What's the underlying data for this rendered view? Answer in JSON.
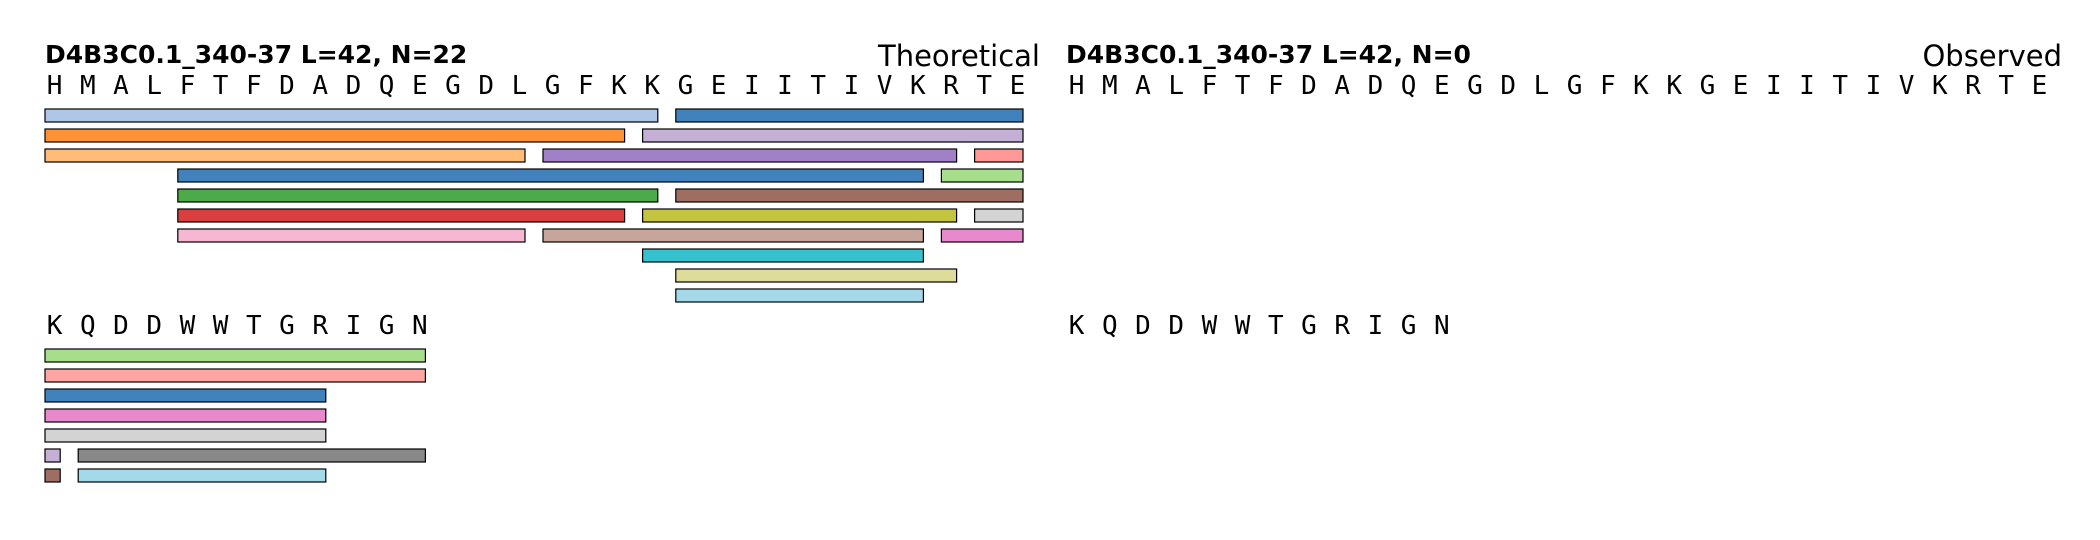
{
  "panels": [
    {
      "title": "D4B3C0.1_340-37  L=42, N=22",
      "label": "Theoretical",
      "rows": [
        {
          "residues": [
            "H",
            "M",
            "A",
            "L",
            "F",
            "T",
            "F",
            "D",
            "A",
            "D",
            "Q",
            "E",
            "G",
            "D",
            "L",
            "G",
            "F",
            "K",
            "K",
            "G",
            "E",
            "I",
            "I",
            "T",
            "I",
            "V",
            "K",
            "R",
            "T",
            "E"
          ],
          "peptides": [
            {
              "start": 1,
              "end": 19,
              "lane": 1,
              "color": "#aec7e8"
            },
            {
              "start": 20,
              "end": 30,
              "lane": 1,
              "color": "#4182bd"
            },
            {
              "start": 1,
              "end": 18,
              "lane": 2,
              "color": "#ff9234"
            },
            {
              "start": 19,
              "end": 30,
              "lane": 2,
              "color": "#c5b0d5"
            },
            {
              "start": 1,
              "end": 15,
              "lane": 3,
              "color": "#ffbb78"
            },
            {
              "start": 16,
              "end": 28,
              "lane": 3,
              "color": "#a081c7"
            },
            {
              "start": 29,
              "end": 30,
              "lane": 3,
              "color": "#ff9896"
            },
            {
              "start": 5,
              "end": 27,
              "lane": 4,
              "color": "#4182bd"
            },
            {
              "start": 28,
              "end": 30,
              "lane": 4,
              "color": "#a6de8c"
            },
            {
              "start": 5,
              "end": 19,
              "lane": 5,
              "color": "#4caa4a"
            },
            {
              "start": 20,
              "end": 30,
              "lane": 5,
              "color": "#9f6e62"
            },
            {
              "start": 5,
              "end": 18,
              "lane": 6,
              "color": "#d93f3f"
            },
            {
              "start": 19,
              "end": 28,
              "lane": 6,
              "color": "#c5c43e"
            },
            {
              "start": 29,
              "end": 30,
              "lane": 6,
              "color": "#d3d3d3"
            },
            {
              "start": 5,
              "end": 15,
              "lane": 7,
              "color": "#f7b6d2"
            },
            {
              "start": 16,
              "end": 27,
              "lane": 7,
              "color": "#c7a59b"
            },
            {
              "start": 28,
              "end": 30,
              "lane": 7,
              "color": "#e889cd"
            },
            {
              "start": 19,
              "end": 27,
              "lane": 8,
              "color": "#35c1cd"
            },
            {
              "start": 20,
              "end": 28,
              "lane": 9,
              "color": "#dedc9a"
            },
            {
              "start": 20,
              "end": 27,
              "lane": 10,
              "color": "#a3d9e8"
            }
          ]
        },
        {
          "residues": [
            "K",
            "Q",
            "D",
            "D",
            "W",
            "W",
            "T",
            "G",
            "R",
            "I",
            "G",
            "N"
          ],
          "peptides": [
            {
              "start": 1,
              "end": 12,
              "lane": 1,
              "color": "#a6de8c"
            },
            {
              "start": 1,
              "end": 12,
              "lane": 2,
              "color": "#ffa5a3"
            },
            {
              "start": 1,
              "end": 9,
              "lane": 3,
              "color": "#4182bd"
            },
            {
              "start": 1,
              "end": 9,
              "lane": 4,
              "color": "#e889cd"
            },
            {
              "start": 1,
              "end": 9,
              "lane": 5,
              "color": "#d3d3d3"
            },
            {
              "start": 1,
              "end": 1,
              "lane": 6,
              "color": "#c5b0d5"
            },
            {
              "start": 2,
              "end": 12,
              "lane": 6,
              "color": "#888888"
            },
            {
              "start": 1,
              "end": 1,
              "lane": 7,
              "color": "#9f6e62"
            },
            {
              "start": 2,
              "end": 9,
              "lane": 7,
              "color": "#a3d9e8"
            }
          ]
        }
      ]
    },
    {
      "title": "D4B3C0.1_340-37  L=42, N=0",
      "label": "Observed",
      "rows": [
        {
          "residues": [
            "H",
            "M",
            "A",
            "L",
            "F",
            "T",
            "F",
            "D",
            "A",
            "D",
            "Q",
            "E",
            "G",
            "D",
            "L",
            "G",
            "F",
            "K",
            "K",
            "G",
            "E",
            "I",
            "I",
            "T",
            "I",
            "V",
            "K",
            "R",
            "T",
            "E"
          ],
          "peptides": []
        },
        {
          "residues": [
            "K",
            "Q",
            "D",
            "D",
            "W",
            "W",
            "T",
            "G",
            "R",
            "I",
            "G",
            "N"
          ],
          "peptides": []
        }
      ]
    }
  ]
}
